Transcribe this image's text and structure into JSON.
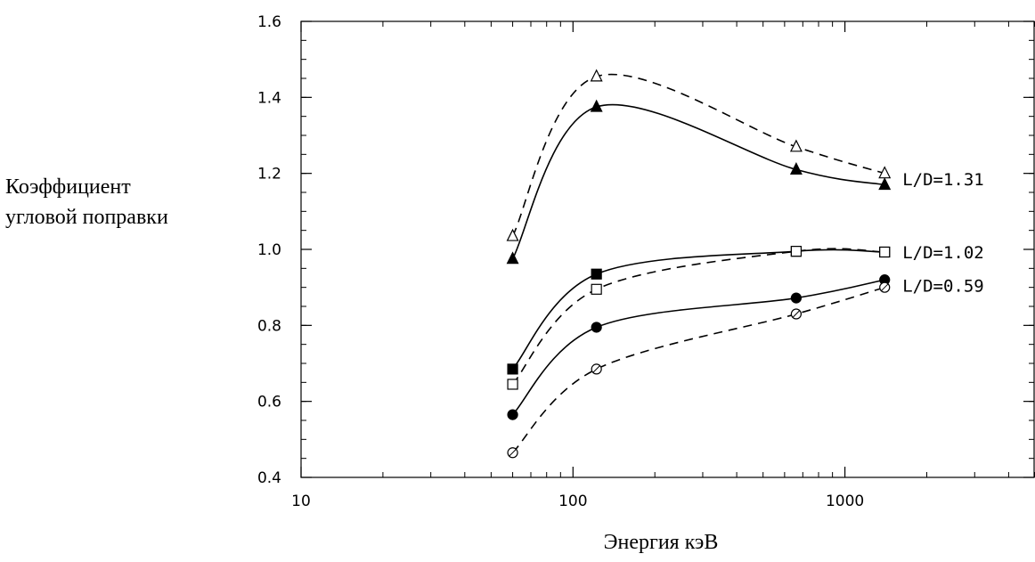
{
  "chart_data": {
    "type": "line",
    "xlabel": "Энергия кэВ",
    "ylabel_lines": [
      "Коэффициент",
      "угловой поправки"
    ],
    "x_scale": "log",
    "xlim": [
      10,
      5000
    ],
    "ylim": [
      0.4,
      1.6
    ],
    "x_ticks": [
      10,
      100,
      1000
    ],
    "y_ticks": [
      0.4,
      0.6,
      0.8,
      1.0,
      1.2,
      1.4,
      1.6
    ],
    "x_tick_labels": [
      "10",
      "100",
      "1000"
    ],
    "y_tick_labels": [
      "0.4",
      "0.6",
      "0.8",
      "1.0",
      "1.2",
      "1.4",
      "1.6"
    ],
    "grid": false,
    "series": [
      {
        "label_key": "L/D=1.31",
        "line": "dashed",
        "marker": "triangle-open",
        "x": [
          60,
          122,
          662,
          1400
        ],
        "y": [
          1.035,
          1.455,
          1.27,
          1.2
        ]
      },
      {
        "label_key": "L/D=1.31",
        "line": "solid",
        "marker": "triangle-filled",
        "x": [
          60,
          122,
          662,
          1400
        ],
        "y": [
          0.975,
          1.375,
          1.21,
          1.17
        ]
      },
      {
        "label_key": "L/D=1.02",
        "line": "solid",
        "marker": "square-filled",
        "x": [
          60,
          122,
          662,
          1400
        ],
        "y": [
          0.685,
          0.935,
          0.995,
          0.993
        ]
      },
      {
        "label_key": "L/D=1.02",
        "line": "dashed",
        "marker": "square-open",
        "x": [
          60,
          122,
          662,
          1400
        ],
        "y": [
          0.645,
          0.895,
          0.995,
          0.993
        ]
      },
      {
        "label_key": "L/D=0.59",
        "line": "solid",
        "marker": "circle-filled",
        "x": [
          60,
          122,
          662,
          1400
        ],
        "y": [
          0.565,
          0.795,
          0.872,
          0.92
        ]
      },
      {
        "label_key": "L/D=0.59",
        "line": "dashed",
        "marker": "circle-open",
        "x": [
          60,
          122,
          662,
          1400
        ],
        "y": [
          0.465,
          0.685,
          0.83,
          0.9
        ]
      }
    ],
    "annotations": [
      {
        "text": "L/D=1.31",
        "x": 1400,
        "y": 1.185
      },
      {
        "text": "L/D=1.02",
        "x": 1400,
        "y": 0.993
      },
      {
        "text": "L/D=0.59",
        "x": 1400,
        "y": 0.905
      }
    ]
  }
}
